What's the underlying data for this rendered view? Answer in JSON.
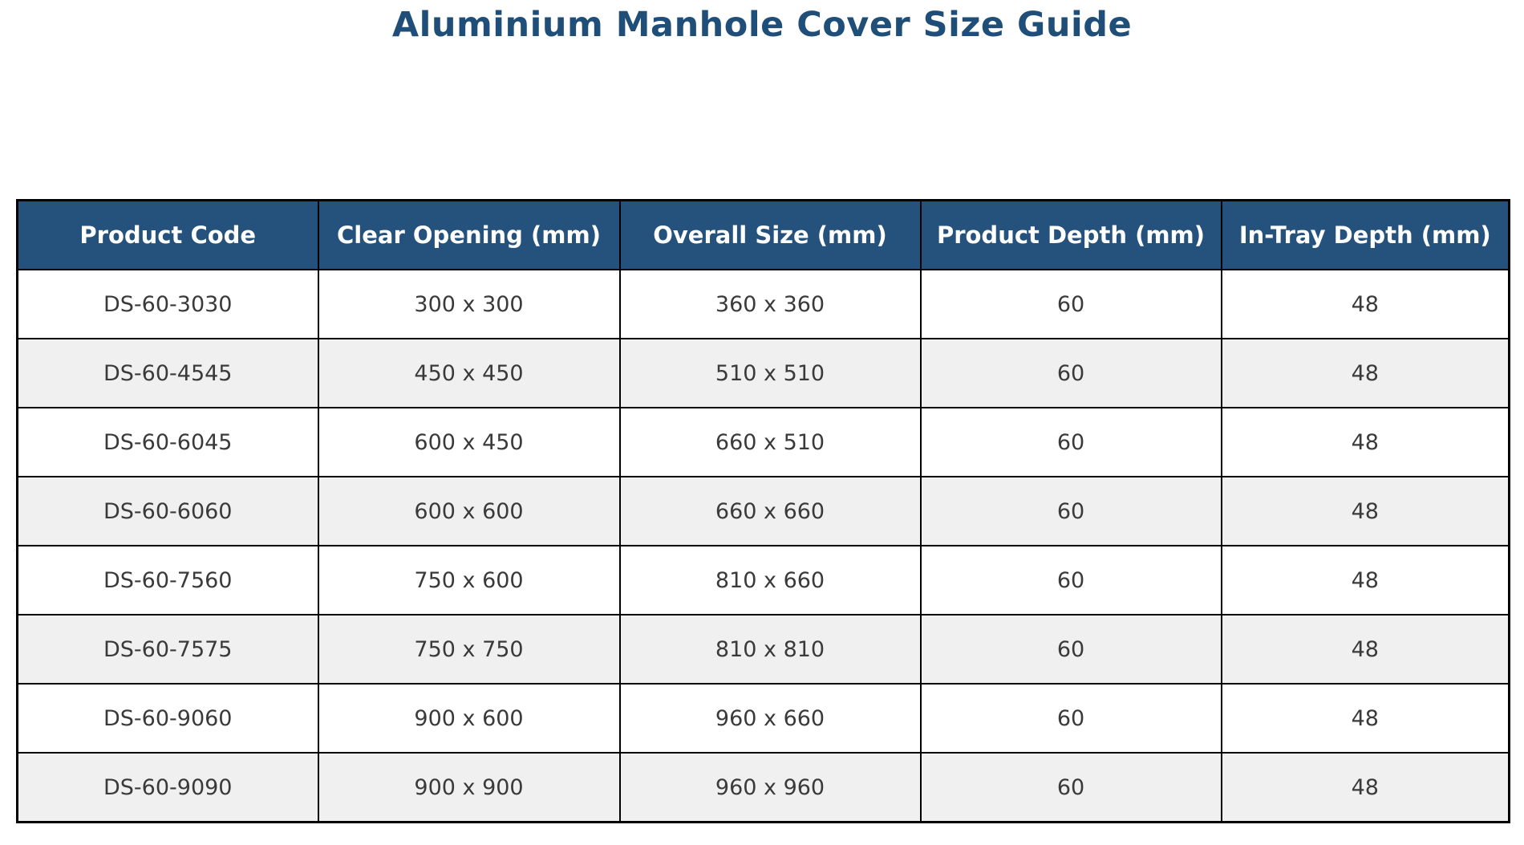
{
  "colors": {
    "title_text": "#1F4E79",
    "header_bg": "#25527D",
    "header_text": "#FFFFFF",
    "row_bg": "#FFFFFF",
    "row_alt_bg": "#F0F0F0",
    "cell_text": "#3A3A3A",
    "border": "#000000"
  },
  "chart_data": {
    "type": "table",
    "title": "Aluminium Manhole Cover Size Guide",
    "columns": [
      "Product Code",
      "Clear Opening (mm)",
      "Overall Size (mm)",
      "Product Depth (mm)",
      "In-Tray Depth (mm)"
    ],
    "rows": [
      [
        "DS-60-3030",
        "300 x 300",
        "360 x 360",
        "60",
        "48"
      ],
      [
        "DS-60-4545",
        "450 x 450",
        "510 x 510",
        "60",
        "48"
      ],
      [
        "DS-60-6045",
        "600 x 450",
        "660 x 510",
        "60",
        "48"
      ],
      [
        "DS-60-6060",
        "600 x 600",
        "660 x 660",
        "60",
        "48"
      ],
      [
        "DS-60-7560",
        "750 x 600",
        "810 x 660",
        "60",
        "48"
      ],
      [
        "DS-60-7575",
        "750 x 750",
        "810 x 810",
        "60",
        "48"
      ],
      [
        "DS-60-9060",
        "900 x 600",
        "960 x 660",
        "60",
        "48"
      ],
      [
        "DS-60-9090",
        "900 x 900",
        "960 x 960",
        "60",
        "48"
      ]
    ]
  }
}
